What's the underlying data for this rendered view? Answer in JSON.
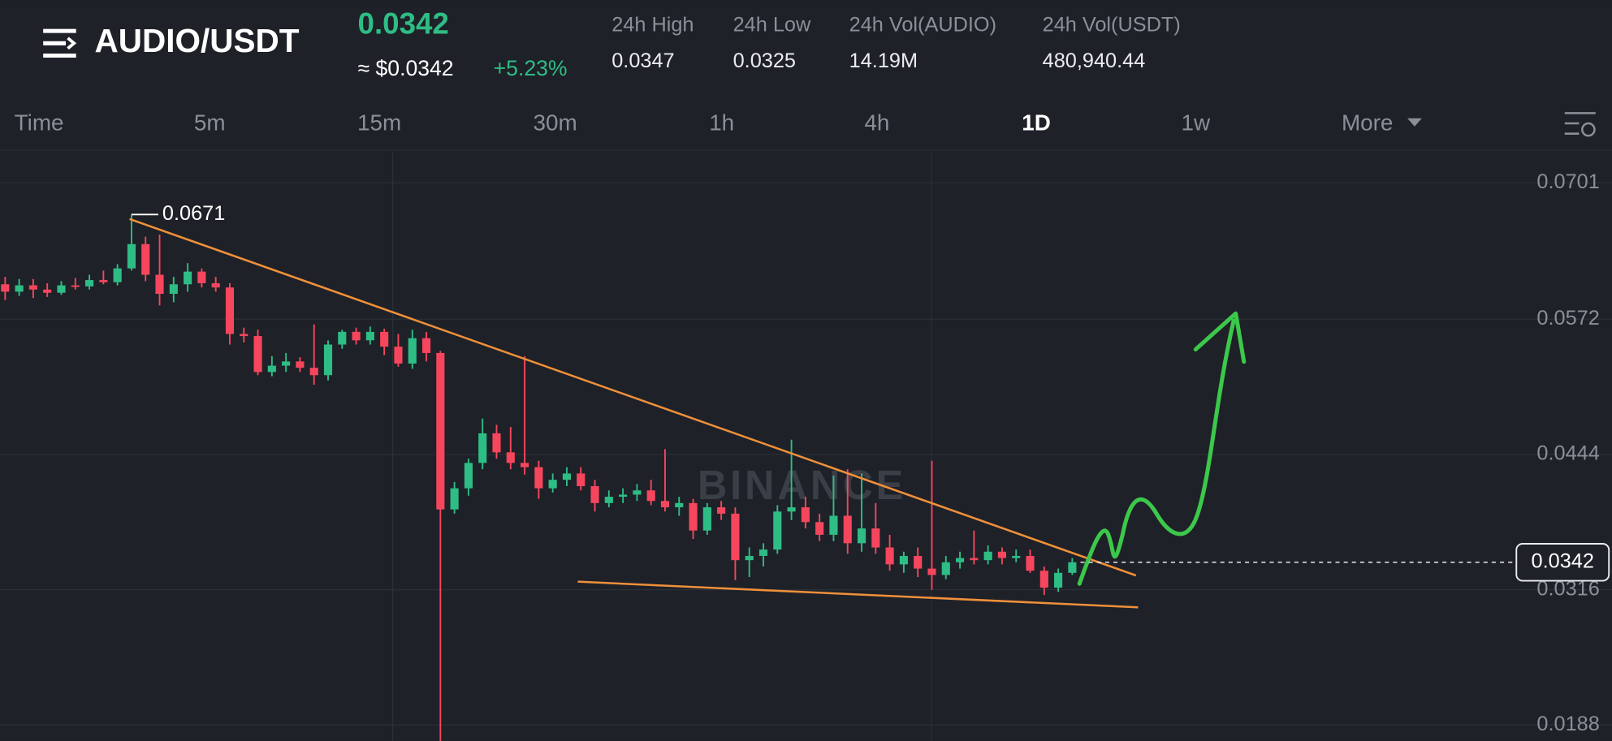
{
  "header": {
    "pair": "AUDIO/USDT",
    "price": "0.0342",
    "price_usd": "≈ $0.0342",
    "change": "+5.23%",
    "stats": [
      {
        "label": "24h High",
        "value": "0.0347"
      },
      {
        "label": "24h Low",
        "value": "0.0325"
      },
      {
        "label": "24h Vol(AUDIO)",
        "value": "14.19M"
      },
      {
        "label": "24h Vol(USDT)",
        "value": "480,940.44"
      }
    ]
  },
  "timeframes": [
    "Time",
    "5m",
    "15m",
    "30m",
    "1h",
    "4h",
    "1D",
    "1w",
    "More"
  ],
  "active_timeframe": 6,
  "chart_data": {
    "type": "candlestick",
    "watermark": "BINANCE",
    "open": [
      0.0605,
      0.0598,
      0.0604,
      0.06,
      0.0597,
      0.0604,
      0.0603,
      0.0609,
      0.0607,
      0.062,
      0.0643,
      0.0614,
      0.0596,
      0.0605,
      0.0617,
      0.0606,
      0.0602,
      0.0558,
      0.0556,
      0.0522,
      0.0528,
      0.0532,
      0.0526,
      0.0519,
      0.0548,
      0.056,
      0.0552,
      0.056,
      0.0546,
      0.053,
      0.0554,
      0.054,
      0.0392,
      0.0412,
      0.0436,
      0.0464,
      0.0446,
      0.0436,
      0.0432,
      0.0412,
      0.042,
      0.0426,
      0.0414,
      0.0398,
      0.0404,
      0.0406,
      0.041,
      0.04,
      0.0394,
      0.0398,
      0.0372,
      0.0394,
      0.0388,
      0.0344,
      0.0348,
      0.0354,
      0.039,
      0.0394,
      0.038,
      0.0368,
      0.0386,
      0.036,
      0.0374,
      0.0356,
      0.034,
      0.0348,
      0.0336,
      0.033,
      0.0342,
      0.0346,
      0.0344,
      0.0352,
      0.0346,
      0.0348,
      0.0334,
      0.0318,
      0.0332
    ],
    "high": [
      0.0612,
      0.061,
      0.061,
      0.0606,
      0.0608,
      0.0611,
      0.0614,
      0.0618,
      0.0624,
      0.0671,
      0.065,
      0.0652,
      0.0612,
      0.0625,
      0.062,
      0.0612,
      0.0606,
      0.0564,
      0.0562,
      0.0537,
      0.054,
      0.0536,
      0.0567,
      0.0552,
      0.0562,
      0.0564,
      0.0565,
      0.0563,
      0.0558,
      0.0562,
      0.056,
      0.0542,
      0.0418,
      0.044,
      0.0478,
      0.0472,
      0.047,
      0.0537,
      0.0438,
      0.0426,
      0.0432,
      0.0432,
      0.042,
      0.041,
      0.0412,
      0.0416,
      0.042,
      0.0449,
      0.0404,
      0.0402,
      0.0398,
      0.04,
      0.0394,
      0.0356,
      0.036,
      0.0396,
      0.0458,
      0.0404,
      0.0388,
      0.0424,
      0.043,
      0.0426,
      0.0398,
      0.0368,
      0.0352,
      0.0356,
      0.0438,
      0.0348,
      0.0352,
      0.0372,
      0.0358,
      0.0356,
      0.0354,
      0.0354,
      0.0338,
      0.0336,
      0.0346
    ],
    "low": [
      0.059,
      0.0594,
      0.0592,
      0.0593,
      0.0595,
      0.06,
      0.06,
      0.0605,
      0.0604,
      0.0618,
      0.0608,
      0.0585,
      0.0588,
      0.0598,
      0.0602,
      0.0598,
      0.0548,
      0.055,
      0.0519,
      0.0518,
      0.0522,
      0.0522,
      0.051,
      0.0514,
      0.0544,
      0.0548,
      0.0548,
      0.0538,
      0.0527,
      0.0525,
      0.0532,
      0.0165,
      0.0388,
      0.0405,
      0.043,
      0.044,
      0.043,
      0.0425,
      0.0402,
      0.0408,
      0.0414,
      0.041,
      0.039,
      0.0394,
      0.0398,
      0.04,
      0.0396,
      0.039,
      0.0386,
      0.0364,
      0.0368,
      0.0382,
      0.0325,
      0.0328,
      0.0338,
      0.035,
      0.0382,
      0.0374,
      0.0362,
      0.0362,
      0.035,
      0.0352,
      0.035,
      0.0334,
      0.0332,
      0.0328,
      0.0316,
      0.0326,
      0.0336,
      0.034,
      0.034,
      0.034,
      0.0342,
      0.0332,
      0.0311,
      0.0314,
      0.033
    ],
    "close": [
      0.0598,
      0.0604,
      0.06,
      0.0597,
      0.0604,
      0.0603,
      0.0609,
      0.0607,
      0.062,
      0.0643,
      0.0614,
      0.0596,
      0.0605,
      0.0617,
      0.0606,
      0.0602,
      0.0558,
      0.0556,
      0.0522,
      0.0528,
      0.0532,
      0.0526,
      0.0519,
      0.0548,
      0.056,
      0.0552,
      0.056,
      0.0546,
      0.053,
      0.0554,
      0.054,
      0.0392,
      0.0412,
      0.0436,
      0.0464,
      0.0446,
      0.0436,
      0.0432,
      0.0412,
      0.042,
      0.0426,
      0.0414,
      0.0398,
      0.0404,
      0.0406,
      0.041,
      0.04,
      0.0394,
      0.0398,
      0.0372,
      0.0394,
      0.0388,
      0.0344,
      0.0348,
      0.0354,
      0.039,
      0.0394,
      0.038,
      0.0368,
      0.0386,
      0.036,
      0.0374,
      0.0356,
      0.034,
      0.0348,
      0.0336,
      0.033,
      0.0342,
      0.0346,
      0.0344,
      0.0352,
      0.0346,
      0.0348,
      0.0334,
      0.0318,
      0.0332,
      0.0342
    ],
    "up_color": "#2ebd85",
    "down_color": "#f6465d",
    "ylim": [
      0.0173,
      0.073
    ],
    "yticks": [
      0.0701,
      0.0572,
      0.0444,
      0.0316,
      0.0188
    ],
    "grid": true,
    "high_label": 0.0671,
    "last_price": 0.0342
  }
}
